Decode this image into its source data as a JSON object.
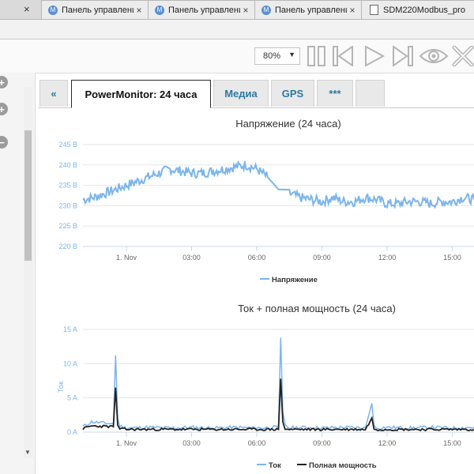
{
  "browser": {
    "tabs": [
      {
        "label": "Панель управления",
        "icon": "M"
      },
      {
        "label": "Панель управления",
        "icon": "M"
      },
      {
        "label": "Панель управления",
        "icon": "M"
      },
      {
        "label": "SDM220Modbus_pro"
      }
    ],
    "first_tab_close": "×"
  },
  "toolbar": {
    "zoom_value": "80%"
  },
  "nav_tabs": {
    "back": "«",
    "items": [
      "PowerMonitor: 24 часа",
      "Медиа",
      "GPS",
      "***",
      ""
    ]
  },
  "colors": {
    "series_light": "#7cb5ec",
    "series_dark": "#222222",
    "tab_text": "#2a7aa6"
  },
  "chart_data": [
    {
      "type": "line",
      "title": "Напряжение (24 часа)",
      "xlabel": "",
      "ylabel": "",
      "x_ticks": [
        "1. Nov",
        "03:00",
        "06:00",
        "09:00",
        "12:00",
        "15:00"
      ],
      "y_ticks": [
        "220 В",
        "225 В",
        "230 В",
        "235 В",
        "240 В",
        "245 В"
      ],
      "ylim": [
        220,
        245
      ],
      "x_hours_range": [
        22,
        40
      ],
      "grid": true,
      "legend": "bottom",
      "series": [
        {
          "name": "Напряжение",
          "x": [
            22.0,
            22.5,
            23.0,
            23.5,
            24.0,
            24.5,
            25.0,
            25.5,
            26.0,
            26.5,
            27.0,
            27.5,
            28.0,
            28.5,
            29.0,
            29.5,
            30.0,
            30.5,
            31.0,
            31.5,
            32.0,
            32.5,
            33.0,
            33.5,
            34.0,
            34.5,
            35.0,
            35.5,
            36.0,
            36.5,
            37.0,
            37.5,
            38.0,
            38.5,
            39.0,
            39.5,
            40.0
          ],
          "values": [
            231.5,
            232,
            233,
            234,
            235,
            236,
            237,
            238,
            239,
            238.5,
            238,
            238,
            238.5,
            239,
            239.5,
            240,
            239,
            237,
            234,
            233,
            232,
            231.5,
            231,
            232,
            231,
            231,
            232,
            231.5,
            230.5,
            230.5,
            231,
            231,
            230.5,
            231,
            231,
            232,
            231.5
          ]
        }
      ]
    },
    {
      "type": "line",
      "title": "Ток + полная мощность (24 часа)",
      "xlabel": "",
      "ylabel": "Ток",
      "x_ticks": [
        "1. Nov",
        "03:00",
        "06:00",
        "09:00",
        "12:00",
        "15:00"
      ],
      "y_ticks": [
        "0 A",
        "5 A",
        "10 A",
        "15 A"
      ],
      "ylim": [
        0,
        15
      ],
      "x_hours_range": [
        22,
        40
      ],
      "grid": true,
      "legend": "bottom",
      "series": [
        {
          "name": "Ток",
          "x": [
            22.0,
            22.4,
            23.4,
            23.5,
            23.6,
            23.7,
            24.0,
            25.0,
            26.0,
            27.0,
            28.0,
            29.0,
            30.0,
            31.0,
            31.1,
            31.2,
            31.3,
            31.5,
            32.0,
            33.0,
            34.0,
            35.0,
            35.3,
            35.4,
            35.5,
            36.0,
            37.0,
            38.0,
            39.0,
            40.0
          ],
          "values": [
            0.8,
            1.5,
            1.2,
            11.2,
            2.0,
            0.9,
            0.6,
            0.7,
            0.6,
            0.7,
            0.6,
            0.7,
            0.6,
            0.7,
            13.8,
            3.0,
            1.0,
            0.6,
            0.7,
            0.6,
            0.7,
            0.6,
            4.2,
            1.0,
            0.6,
            0.7,
            0.6,
            0.7,
            0.6,
            0.7
          ]
        },
        {
          "name": "Полная мощность",
          "x": [
            22.0,
            22.4,
            23.4,
            23.5,
            23.6,
            23.7,
            24.0,
            25.0,
            26.0,
            27.0,
            28.0,
            29.0,
            30.0,
            31.0,
            31.1,
            31.2,
            31.3,
            31.5,
            32.0,
            33.0,
            34.0,
            35.0,
            35.3,
            35.4,
            35.5,
            36.0,
            37.0,
            38.0,
            39.0,
            40.0
          ],
          "values": [
            0.5,
            0.9,
            0.8,
            6.5,
            1.0,
            0.5,
            0.4,
            0.4,
            0.4,
            0.4,
            0.4,
            0.4,
            0.4,
            0.4,
            7.8,
            1.5,
            0.5,
            0.4,
            0.4,
            0.4,
            0.4,
            0.4,
            2.0,
            0.5,
            0.4,
            0.4,
            0.4,
            0.4,
            0.4,
            0.4
          ]
        }
      ]
    }
  ]
}
